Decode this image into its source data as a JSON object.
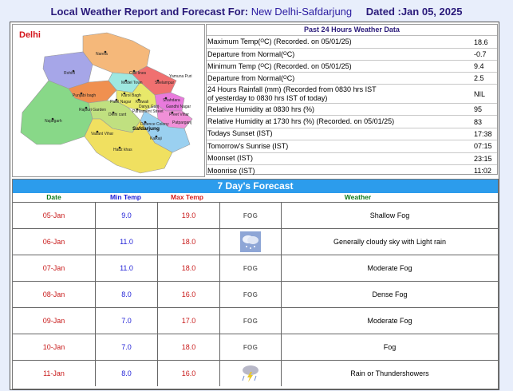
{
  "header": {
    "prefix": "Local Weather Report and Forecast For:",
    "location": "New Delhi-Safdarjung",
    "dated": "Dated :Jan 05, 2025"
  },
  "map": {
    "region_label": "Delhi",
    "places": [
      "Narela",
      "Rohini",
      "Civil lines",
      "Model Town",
      "Seelampur",
      "Shahdara",
      "Punjabi bagh",
      "Karol Bagh",
      "Patel Nagar",
      "Kotwali",
      "Rajouri Garden",
      "Delhi cant",
      "Parliament Street",
      "Preet Vihar",
      "Najafgarh",
      "Defence Colony",
      "Vasant Vihar",
      "Kalkaji",
      "Hauz khas",
      "Safdarjung",
      "Gandhi Nagar",
      "Patparganj",
      "Darya Ganj",
      "Yamuna Puri"
    ],
    "station": "Safdarjung"
  },
  "past24": {
    "title": "Past 24 Hours Weather Data",
    "rows": [
      {
        "label_a": "Maximum Temp(",
        "sup": "O",
        "label_b": "C) (Recorded. on 05/01/25)",
        "value": "18.6"
      },
      {
        "label_a": "Departure from Normal(",
        "sup": "O",
        "label_b": "C)",
        "value": "-0.7"
      },
      {
        "label_a": "Minimum Temp (",
        "sup": "O",
        "label_b": "C) (Recorded. on 05/01/25)",
        "value": "9.4"
      },
      {
        "label_a": "Departure from Normal(",
        "sup": "O",
        "label_b": "C)",
        "value": "2.5"
      },
      {
        "label_a": "24 Hours Rainfall (mm) (Recorded from 0830 hrs IST",
        "label_c": "of yesterday to 0830 hrs IST of today)",
        "value": "NIL"
      },
      {
        "label_a": "Relative Humidity at 0830 hrs (%)",
        "value": "95"
      },
      {
        "label_a": "Relative Humidity at 1730 hrs (%) (Recorded. on 05/01/25)",
        "value": "83"
      },
      {
        "label_a": "Todays Sunset (IST)",
        "value": "17:38"
      },
      {
        "label_a": "Tomorrow's Sunrise (IST)",
        "value": "07:15"
      },
      {
        "label_a": "Moonset (IST)",
        "value": "23:15"
      },
      {
        "label_a": "Moonrise (IST)",
        "value": "11:02"
      }
    ]
  },
  "forecast": {
    "title": "7 Day's Forecast",
    "headers": {
      "date": "Date",
      "min": "Min Temp",
      "max": "Max Temp",
      "weather": "Weather"
    },
    "rows": [
      {
        "date": "05-Jan",
        "min": "9.0",
        "max": "19.0",
        "icon": "fog-icon",
        "icon_text": "FOG",
        "desc": "Shallow Fog"
      },
      {
        "date": "06-Jan",
        "min": "11.0",
        "max": "18.0",
        "icon": "cloudy-light-rain-icon",
        "desc": "Generally cloudy sky with Light rain"
      },
      {
        "date": "07-Jan",
        "min": "11.0",
        "max": "18.0",
        "icon": "fog-icon",
        "icon_text": "FOG",
        "desc": "Moderate Fog"
      },
      {
        "date": "08-Jan",
        "min": "8.0",
        "max": "16.0",
        "icon": "fog-icon",
        "icon_text": "FOG",
        "desc": "Dense Fog"
      },
      {
        "date": "09-Jan",
        "min": "7.0",
        "max": "17.0",
        "icon": "fog-icon",
        "icon_text": "FOG",
        "desc": "Moderate Fog"
      },
      {
        "date": "10-Jan",
        "min": "7.0",
        "max": "18.0",
        "icon": "fog-icon",
        "icon_text": "FOG",
        "desc": "Fog"
      },
      {
        "date": "11-Jan",
        "min": "8.0",
        "max": "16.0",
        "icon": "thunderstorm-rain-icon",
        "desc": "Rain or Thundershowers"
      }
    ]
  },
  "colors": {
    "forecast_header": "#2c9cec",
    "date_text": "#c81a1a",
    "min_text": "#1d1dd6",
    "max_text": "#c81a1a",
    "weather_header": "#0f7a1a"
  }
}
